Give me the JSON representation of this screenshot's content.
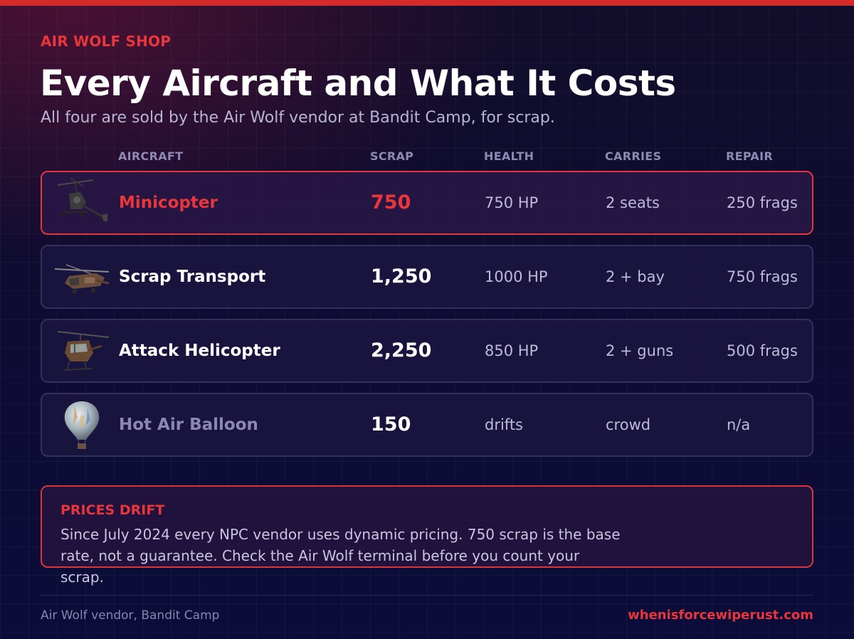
{
  "header": {
    "eyebrow": "AIR WOLF SHOP",
    "title": "Every Aircraft and What It Costs",
    "subtitle": "All four are sold by the Air Wolf vendor at Bandit Camp, for scrap."
  },
  "table": {
    "columns": [
      "AIRCRAFT",
      "SCRAP",
      "HEALTH",
      "CARRIES",
      "REPAIR"
    ],
    "rows": [
      {
        "name": "Minicopter",
        "scrap": "750",
        "health": "750 HP",
        "carries": "2 seats",
        "repair": "250 frags",
        "icon": "minicopter-icon"
      },
      {
        "name": "Scrap Transport",
        "scrap": "1,250",
        "health": "1000 HP",
        "carries": "2 + bay",
        "repair": "750 frags",
        "icon": "scrap-transport-helicopter-icon"
      },
      {
        "name": "Attack Helicopter",
        "scrap": "2,250",
        "health": "850 HP",
        "carries": "2 + guns",
        "repair": "500 frags",
        "icon": "attack-helicopter-icon"
      },
      {
        "name": "Hot Air Balloon",
        "scrap": "150",
        "health": "drifts",
        "carries": "crowd",
        "repair": "n/a",
        "icon": "hot-air-balloon-icon"
      }
    ]
  },
  "note": {
    "heading": "PRICES DRIFT",
    "body": "Since July 2024 every NPC vendor uses dynamic pricing. 750 scrap is the base rate, not a guarantee. Check the Air Wolf terminal before you count your scrap."
  },
  "footer": {
    "left": "Air Wolf vendor, Bandit Camp",
    "right": "whenisforcewiperust.com"
  },
  "colors": {
    "accent": "#e8363a",
    "top_bar": "#d42a2a",
    "background": "#0e0c33",
    "row_border": "#34305e",
    "muted_text": "#8e89b2"
  }
}
